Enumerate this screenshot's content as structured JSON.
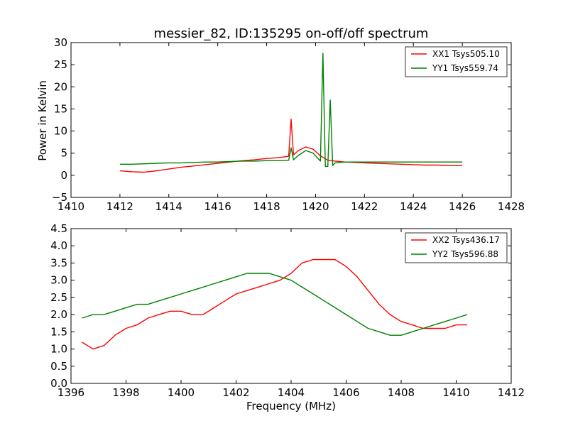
{
  "chart_data": [
    {
      "type": "line",
      "title": "messier_82, ID:135295 on-off/off spectrum",
      "xlabel": "",
      "ylabel": "Power in Kelvin",
      "xlim": [
        1410,
        1428
      ],
      "ylim": [
        -5,
        30
      ],
      "xticks": [
        1410,
        1412,
        1414,
        1416,
        1418,
        1420,
        1422,
        1424,
        1426,
        1428
      ],
      "yticks": [
        -5,
        0,
        5,
        10,
        15,
        20,
        25,
        30
      ],
      "legend_position": "top-right",
      "series": [
        {
          "name": "XX1 Tsys505.10",
          "color": "#ff0000",
          "x": [
            1412.0,
            1412.5,
            1413.0,
            1413.5,
            1414.0,
            1414.5,
            1415.0,
            1415.5,
            1416.0,
            1416.5,
            1417.0,
            1417.5,
            1418.0,
            1418.5,
            1418.9,
            1419.0,
            1419.1,
            1419.3,
            1419.6,
            1419.9,
            1420.2,
            1420.5,
            1420.8,
            1421.2,
            1421.6,
            1422.0,
            1422.5,
            1423.0,
            1423.5,
            1424.0,
            1424.5,
            1425.0,
            1425.5,
            1426.0
          ],
          "y": [
            1.0,
            0.8,
            0.7,
            1.0,
            1.4,
            1.8,
            2.1,
            2.4,
            2.7,
            3.0,
            3.3,
            3.5,
            3.8,
            4.0,
            4.3,
            12.7,
            4.6,
            5.6,
            6.4,
            5.9,
            4.4,
            3.4,
            3.2,
            3.0,
            2.9,
            2.8,
            2.7,
            2.6,
            2.5,
            2.4,
            2.3,
            2.3,
            2.2,
            2.2
          ]
        },
        {
          "name": "YY1 Tsys559.74",
          "color": "#008000",
          "x": [
            1412.0,
            1412.5,
            1413.0,
            1413.5,
            1414.0,
            1414.5,
            1415.0,
            1415.5,
            1416.0,
            1416.5,
            1417.0,
            1417.5,
            1418.0,
            1418.5,
            1418.9,
            1419.0,
            1419.1,
            1419.3,
            1419.6,
            1419.9,
            1420.2,
            1420.3,
            1420.4,
            1420.5,
            1420.6,
            1420.7,
            1420.8,
            1421.2,
            1421.6,
            1422.0,
            1422.5,
            1423.0,
            1423.5,
            1424.0,
            1424.5,
            1425.0,
            1425.5,
            1426.0
          ],
          "y": [
            2.5,
            2.5,
            2.6,
            2.7,
            2.8,
            2.8,
            2.9,
            3.0,
            3.0,
            3.1,
            3.2,
            3.2,
            3.3,
            3.3,
            3.4,
            6.2,
            3.5,
            4.5,
            5.6,
            5.0,
            3.2,
            27.6,
            2.0,
            2.0,
            17.0,
            2.2,
            2.8,
            3.0,
            3.0,
            3.0,
            3.0,
            3.0,
            3.0,
            3.0,
            3.0,
            3.0,
            3.0,
            3.0
          ]
        }
      ]
    },
    {
      "type": "line",
      "title": "",
      "xlabel": "Frequency (MHz)",
      "ylabel": "",
      "xlim": [
        1396,
        1412
      ],
      "ylim": [
        0.0,
        4.5
      ],
      "xticks": [
        1396,
        1398,
        1400,
        1402,
        1404,
        1406,
        1408,
        1410,
        1412
      ],
      "yticks": [
        0.0,
        0.5,
        1.0,
        1.5,
        2.0,
        2.5,
        3.0,
        3.5,
        4.0,
        4.5
      ],
      "legend_position": "top-right",
      "series": [
        {
          "name": "XX2 Tsys436.17",
          "color": "#ff0000",
          "x": [
            1396.4,
            1396.8,
            1397.2,
            1397.6,
            1398.0,
            1398.4,
            1398.8,
            1399.2,
            1399.6,
            1400.0,
            1400.4,
            1400.8,
            1401.2,
            1401.6,
            1402.0,
            1402.4,
            1402.8,
            1403.2,
            1403.6,
            1404.0,
            1404.4,
            1404.8,
            1405.2,
            1405.6,
            1406.0,
            1406.4,
            1406.8,
            1407.2,
            1407.6,
            1408.0,
            1408.4,
            1408.8,
            1409.2,
            1409.6,
            1410.0,
            1410.4
          ],
          "y": [
            1.2,
            1.0,
            1.1,
            1.4,
            1.6,
            1.7,
            1.9,
            2.0,
            2.1,
            2.1,
            2.0,
            2.0,
            2.2,
            2.4,
            2.6,
            2.7,
            2.8,
            2.9,
            3.0,
            3.2,
            3.5,
            3.6,
            3.6,
            3.6,
            3.4,
            3.1,
            2.7,
            2.3,
            2.0,
            1.8,
            1.7,
            1.6,
            1.6,
            1.6,
            1.7,
            1.7
          ]
        },
        {
          "name": "YY2 Tsys596.88",
          "color": "#008000",
          "x": [
            1396.4,
            1396.8,
            1397.2,
            1397.6,
            1398.0,
            1398.4,
            1398.8,
            1399.2,
            1399.6,
            1400.0,
            1400.4,
            1400.8,
            1401.2,
            1401.6,
            1402.0,
            1402.4,
            1402.8,
            1403.2,
            1403.6,
            1404.0,
            1404.4,
            1404.8,
            1405.2,
            1405.6,
            1406.0,
            1406.4,
            1406.8,
            1407.2,
            1407.6,
            1408.0,
            1408.4,
            1408.8,
            1409.2,
            1409.6,
            1410.0,
            1410.4
          ],
          "y": [
            1.9,
            2.0,
            2.0,
            2.1,
            2.2,
            2.3,
            2.3,
            2.4,
            2.5,
            2.6,
            2.7,
            2.8,
            2.9,
            3.0,
            3.1,
            3.2,
            3.2,
            3.2,
            3.1,
            3.0,
            2.8,
            2.6,
            2.4,
            2.2,
            2.0,
            1.8,
            1.6,
            1.5,
            1.4,
            1.4,
            1.5,
            1.6,
            1.7,
            1.8,
            1.9,
            2.0
          ]
        }
      ]
    }
  ]
}
